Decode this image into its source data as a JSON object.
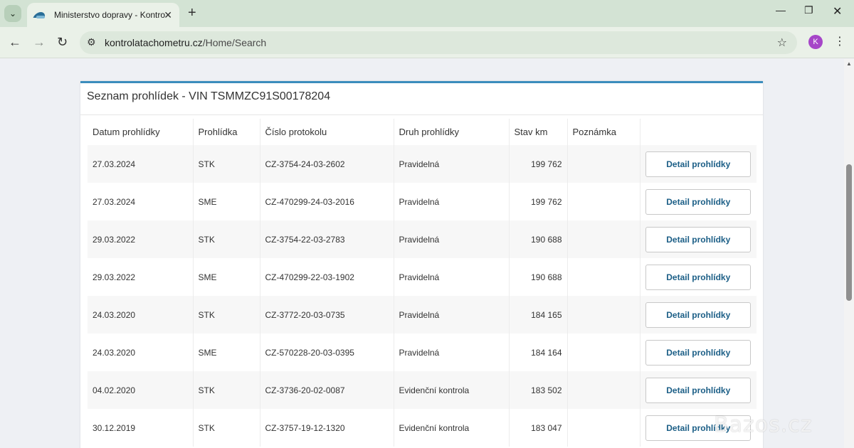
{
  "browser": {
    "tab_title": "Ministerstvo dopravy - Kontrola",
    "url_domain": "kontrolatachometru.cz",
    "url_path": "/Home/Search",
    "profile_initial": "K"
  },
  "card": {
    "title": "Seznam prohlídek - VIN TSMMZC91S00178204"
  },
  "table": {
    "headers": [
      "Datum prohlídky",
      "Prohlídka",
      "Číslo protokolu",
      "Druh prohlídky",
      "Stav km",
      "Poznámka"
    ],
    "button_label": "Detail prohlídky",
    "rows": [
      {
        "date": "27.03.2024",
        "type": "STK",
        "protocol": "CZ-3754-24-03-2602",
        "kind": "Pravidelná",
        "km": "199 762",
        "note": ""
      },
      {
        "date": "27.03.2024",
        "type": "SME",
        "protocol": "CZ-470299-24-03-2016",
        "kind": "Pravidelná",
        "km": "199 762",
        "note": ""
      },
      {
        "date": "29.03.2022",
        "type": "STK",
        "protocol": "CZ-3754-22-03-2783",
        "kind": "Pravidelná",
        "km": "190 688",
        "note": ""
      },
      {
        "date": "29.03.2022",
        "type": "SME",
        "protocol": "CZ-470299-22-03-1902",
        "kind": "Pravidelná",
        "km": "190 688",
        "note": ""
      },
      {
        "date": "24.03.2020",
        "type": "STK",
        "protocol": "CZ-3772-20-03-0735",
        "kind": "Pravidelná",
        "km": "184 165",
        "note": ""
      },
      {
        "date": "24.03.2020",
        "type": "SME",
        "protocol": "CZ-570228-20-03-0395",
        "kind": "Pravidelná",
        "km": "184 164",
        "note": ""
      },
      {
        "date": "04.02.2020",
        "type": "STK",
        "protocol": "CZ-3736-20-02-0087",
        "kind": "Evidenční kontrola",
        "km": "183 502",
        "note": ""
      },
      {
        "date": "30.12.2019",
        "type": "STK",
        "protocol": "CZ-3757-19-12-1320",
        "kind": "Evidenční kontrola",
        "km": "183 047",
        "note": ""
      }
    ]
  },
  "watermark": "Bazos.cz",
  "colors": {
    "accent": "#3b8dbd",
    "button_text": "#1b5e86",
    "tabbar": "#d3e3d4"
  }
}
